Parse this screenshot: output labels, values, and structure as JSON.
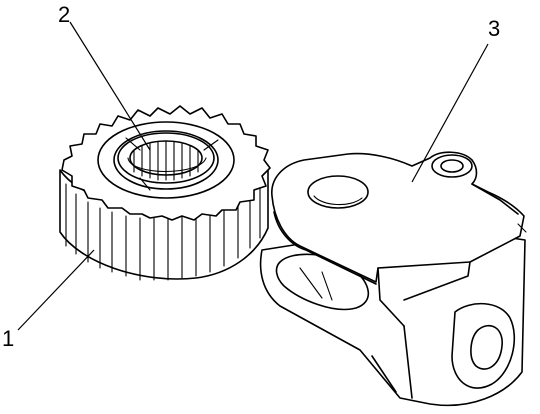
{
  "callouts": {
    "c1": "1",
    "c2": "2",
    "c3": "3"
  },
  "icons": {
    "part1": "spur-gear-icon",
    "part2": "splined-bore-icon",
    "part3": "bracket-arm-icon"
  }
}
